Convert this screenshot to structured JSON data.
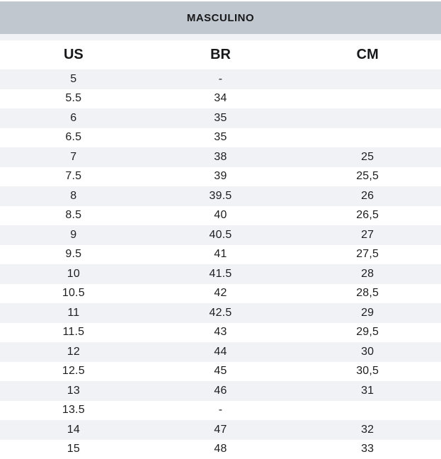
{
  "table": {
    "title": "MASCULINO",
    "columns": [
      "US",
      "BR",
      "CM"
    ],
    "rows": [
      [
        "5",
        "-",
        ""
      ],
      [
        "5.5",
        "34",
        ""
      ],
      [
        "6",
        "35",
        ""
      ],
      [
        "6.5",
        "35",
        ""
      ],
      [
        "7",
        "38",
        "25"
      ],
      [
        "7.5",
        "39",
        "25,5"
      ],
      [
        "8",
        "39.5",
        "26"
      ],
      [
        "8.5",
        "40",
        "26,5"
      ],
      [
        "9",
        "40.5",
        "27"
      ],
      [
        "9.5",
        "41",
        "27,5"
      ],
      [
        "10",
        "41.5",
        "28"
      ],
      [
        "10.5",
        "42",
        "28,5"
      ],
      [
        "11",
        "42.5",
        "29"
      ],
      [
        "11.5",
        "43",
        "29,5"
      ],
      [
        "12",
        "44",
        "30"
      ],
      [
        "12.5",
        "45",
        "30,5"
      ],
      [
        "13",
        "46",
        "31"
      ],
      [
        "13.5",
        "-",
        ""
      ],
      [
        "14",
        "47",
        "32"
      ],
      [
        "15",
        "48",
        "33"
      ]
    ],
    "colors": {
      "title_band_bg": "#c1c7ce",
      "row_alt_bg": "#f1f2f6",
      "row_bg": "#ffffff",
      "text": "#1d1d1f"
    }
  }
}
